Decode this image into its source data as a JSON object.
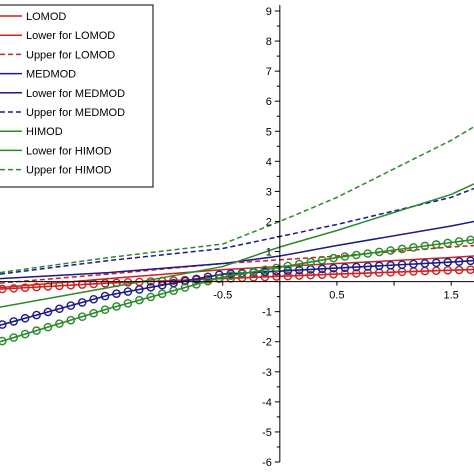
{
  "chart_data": {
    "type": "line",
    "xlim": [
      -2.45,
      1.7
    ],
    "ylim": [
      -6,
      9
    ],
    "grid": false,
    "legend_position": "top-left",
    "x_ticks": [
      {
        "value": -0.5,
        "label": "-0.5"
      },
      {
        "value": 0.5,
        "label": "0.5"
      },
      {
        "value": 1.5,
        "label": "1.5"
      }
    ],
    "y_ticks": [
      {
        "value": 9,
        "label": "9"
      },
      {
        "value": 8,
        "label": "8"
      },
      {
        "value": 7,
        "label": "7"
      },
      {
        "value": 6,
        "label": "6"
      },
      {
        "value": 5,
        "label": "5"
      },
      {
        "value": 4,
        "label": "4"
      },
      {
        "value": 3,
        "label": "3"
      },
      {
        "value": 2,
        "label": "2"
      },
      {
        "value": 1,
        "label": "1"
      },
      {
        "value": -1,
        "label": "-1"
      },
      {
        "value": -2,
        "label": "-2"
      },
      {
        "value": -3,
        "label": "-3"
      },
      {
        "value": -4,
        "label": "-4"
      },
      {
        "value": -5,
        "label": "-5"
      },
      {
        "value": -6,
        "label": "-6"
      }
    ],
    "series": [
      {
        "name": "LOMOD",
        "color": "#cc2222",
        "style": "solid",
        "marker": "none",
        "points": [
          [
            -2.45,
            -0.2
          ],
          [
            -1.5,
            0.1
          ],
          [
            -0.5,
            0.4
          ],
          [
            0.5,
            0.6
          ],
          [
            1.5,
            0.8
          ],
          [
            1.7,
            0.85
          ]
        ]
      },
      {
        "name": "Lower for LOMOD",
        "color": "#cc2222",
        "style": "solid",
        "marker": "circle",
        "points": [
          [
            -2.45,
            -0.25
          ],
          [
            -1.5,
            -0.05
          ],
          [
            -0.5,
            0.1
          ],
          [
            0.5,
            0.25
          ],
          [
            1.5,
            0.38
          ],
          [
            1.7,
            0.4
          ]
        ]
      },
      {
        "name": "Upper for LOMOD",
        "color": "#cc2222",
        "style": "dashed",
        "marker": "none",
        "points": [
          [
            -2.45,
            -0.05
          ],
          [
            -1.5,
            0.25
          ],
          [
            -0.5,
            0.6
          ],
          [
            0.5,
            0.85
          ],
          [
            1.5,
            1.15
          ],
          [
            1.7,
            1.2
          ]
        ]
      },
      {
        "name": "MEDMOD",
        "color": "#1a1a88",
        "style": "solid",
        "marker": "none",
        "points": [
          [
            -2.45,
            0.1
          ],
          [
            -1.5,
            0.3
          ],
          [
            -0.5,
            0.6
          ],
          [
            0,
            0.85
          ],
          [
            0.5,
            1.2
          ],
          [
            1.5,
            1.85
          ],
          [
            1.7,
            2.0
          ]
        ]
      },
      {
        "name": "Lower for MEDMOD",
        "color": "#1a1a88",
        "style": "solid",
        "marker": "circle",
        "points": [
          [
            -2.45,
            -1.45
          ],
          [
            -1.5,
            -0.45
          ],
          [
            -0.5,
            0.25
          ],
          [
            0.5,
            0.45
          ],
          [
            1.5,
            0.65
          ],
          [
            1.7,
            0.7
          ]
        ]
      },
      {
        "name": "Upper for MEDMOD",
        "color": "#1a1a88",
        "style": "dashed",
        "marker": "none",
        "points": [
          [
            -2.45,
            0.25
          ],
          [
            -1.5,
            0.7
          ],
          [
            -0.5,
            1.1
          ],
          [
            0,
            1.5
          ],
          [
            0.5,
            1.9
          ],
          [
            1.5,
            2.8
          ],
          [
            1.7,
            3.1
          ]
        ]
      },
      {
        "name": "HIMOD",
        "color": "#2a8a2a",
        "style": "solid",
        "marker": "none",
        "points": [
          [
            -2.45,
            -0.85
          ],
          [
            -1.5,
            -0.2
          ],
          [
            -0.5,
            0.5
          ],
          [
            0,
            1.15
          ],
          [
            0.5,
            1.7
          ],
          [
            1.5,
            2.9
          ],
          [
            1.7,
            3.25
          ]
        ]
      },
      {
        "name": "Lower for HIMOD",
        "color": "#2a8a2a",
        "style": "solid",
        "marker": "circle",
        "points": [
          [
            -2.45,
            -2.0
          ],
          [
            -1.5,
            -0.9
          ],
          [
            -0.5,
            0.15
          ],
          [
            0.5,
            0.8
          ],
          [
            1.5,
            1.3
          ],
          [
            1.7,
            1.4
          ]
        ]
      },
      {
        "name": "Upper for HIMOD",
        "color": "#2a8a2a",
        "style": "dashed",
        "marker": "none",
        "points": [
          [
            -2.45,
            0.3
          ],
          [
            -1.5,
            0.8
          ],
          [
            -0.5,
            1.25
          ],
          [
            0,
            2.0
          ],
          [
            0.5,
            2.8
          ],
          [
            1.5,
            4.7
          ],
          [
            1.7,
            5.15
          ]
        ]
      }
    ]
  }
}
